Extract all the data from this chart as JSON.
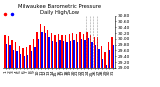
{
  "title": "Milwaukee Barometric Pressure\nDaily High/Low",
  "title_fontsize": 3.8,
  "background_color": "#ffffff",
  "bar_color_high": "#ff0000",
  "bar_color_low": "#0000ff",
  "ylim": [
    29.0,
    30.8
  ],
  "yticks": [
    29.0,
    29.2,
    29.4,
    29.6,
    29.8,
    30.0,
    30.2,
    30.4,
    30.6,
    30.8
  ],
  "ytick_labels": [
    "29.00",
    "29.20",
    "29.40",
    "29.60",
    "29.80",
    "30.00",
    "30.20",
    "30.40",
    "30.60",
    "30.80"
  ],
  "days": [
    1,
    2,
    3,
    4,
    5,
    6,
    7,
    8,
    9,
    10,
    11,
    12,
    13,
    14,
    15,
    16,
    17,
    18,
    19,
    20,
    21,
    22,
    23,
    24,
    25,
    26,
    27,
    28,
    29,
    30,
    31
  ],
  "highs": [
    30.12,
    30.1,
    29.95,
    29.88,
    29.75,
    29.7,
    29.72,
    29.8,
    29.98,
    30.22,
    30.52,
    30.45,
    30.32,
    30.2,
    30.15,
    30.18,
    30.15,
    30.12,
    30.18,
    30.2,
    30.16,
    30.22,
    30.18,
    30.25,
    30.15,
    30.08,
    30.05,
    29.75,
    29.55,
    29.9,
    30.05
  ],
  "lows": [
    29.82,
    29.8,
    29.62,
    29.58,
    29.48,
    29.42,
    29.45,
    29.58,
    29.72,
    29.98,
    30.22,
    30.2,
    30.05,
    29.92,
    29.88,
    29.95,
    29.92,
    29.88,
    29.92,
    29.96,
    29.88,
    29.98,
    29.95,
    30.02,
    29.88,
    29.78,
    29.65,
    29.32,
    29.1,
    29.6,
    29.78
  ],
  "dashed_vlines_x": [
    22.5,
    23.5,
    24.5,
    25.5
  ],
  "tick_fontsize": 3.2,
  "bar_width": 0.38
}
